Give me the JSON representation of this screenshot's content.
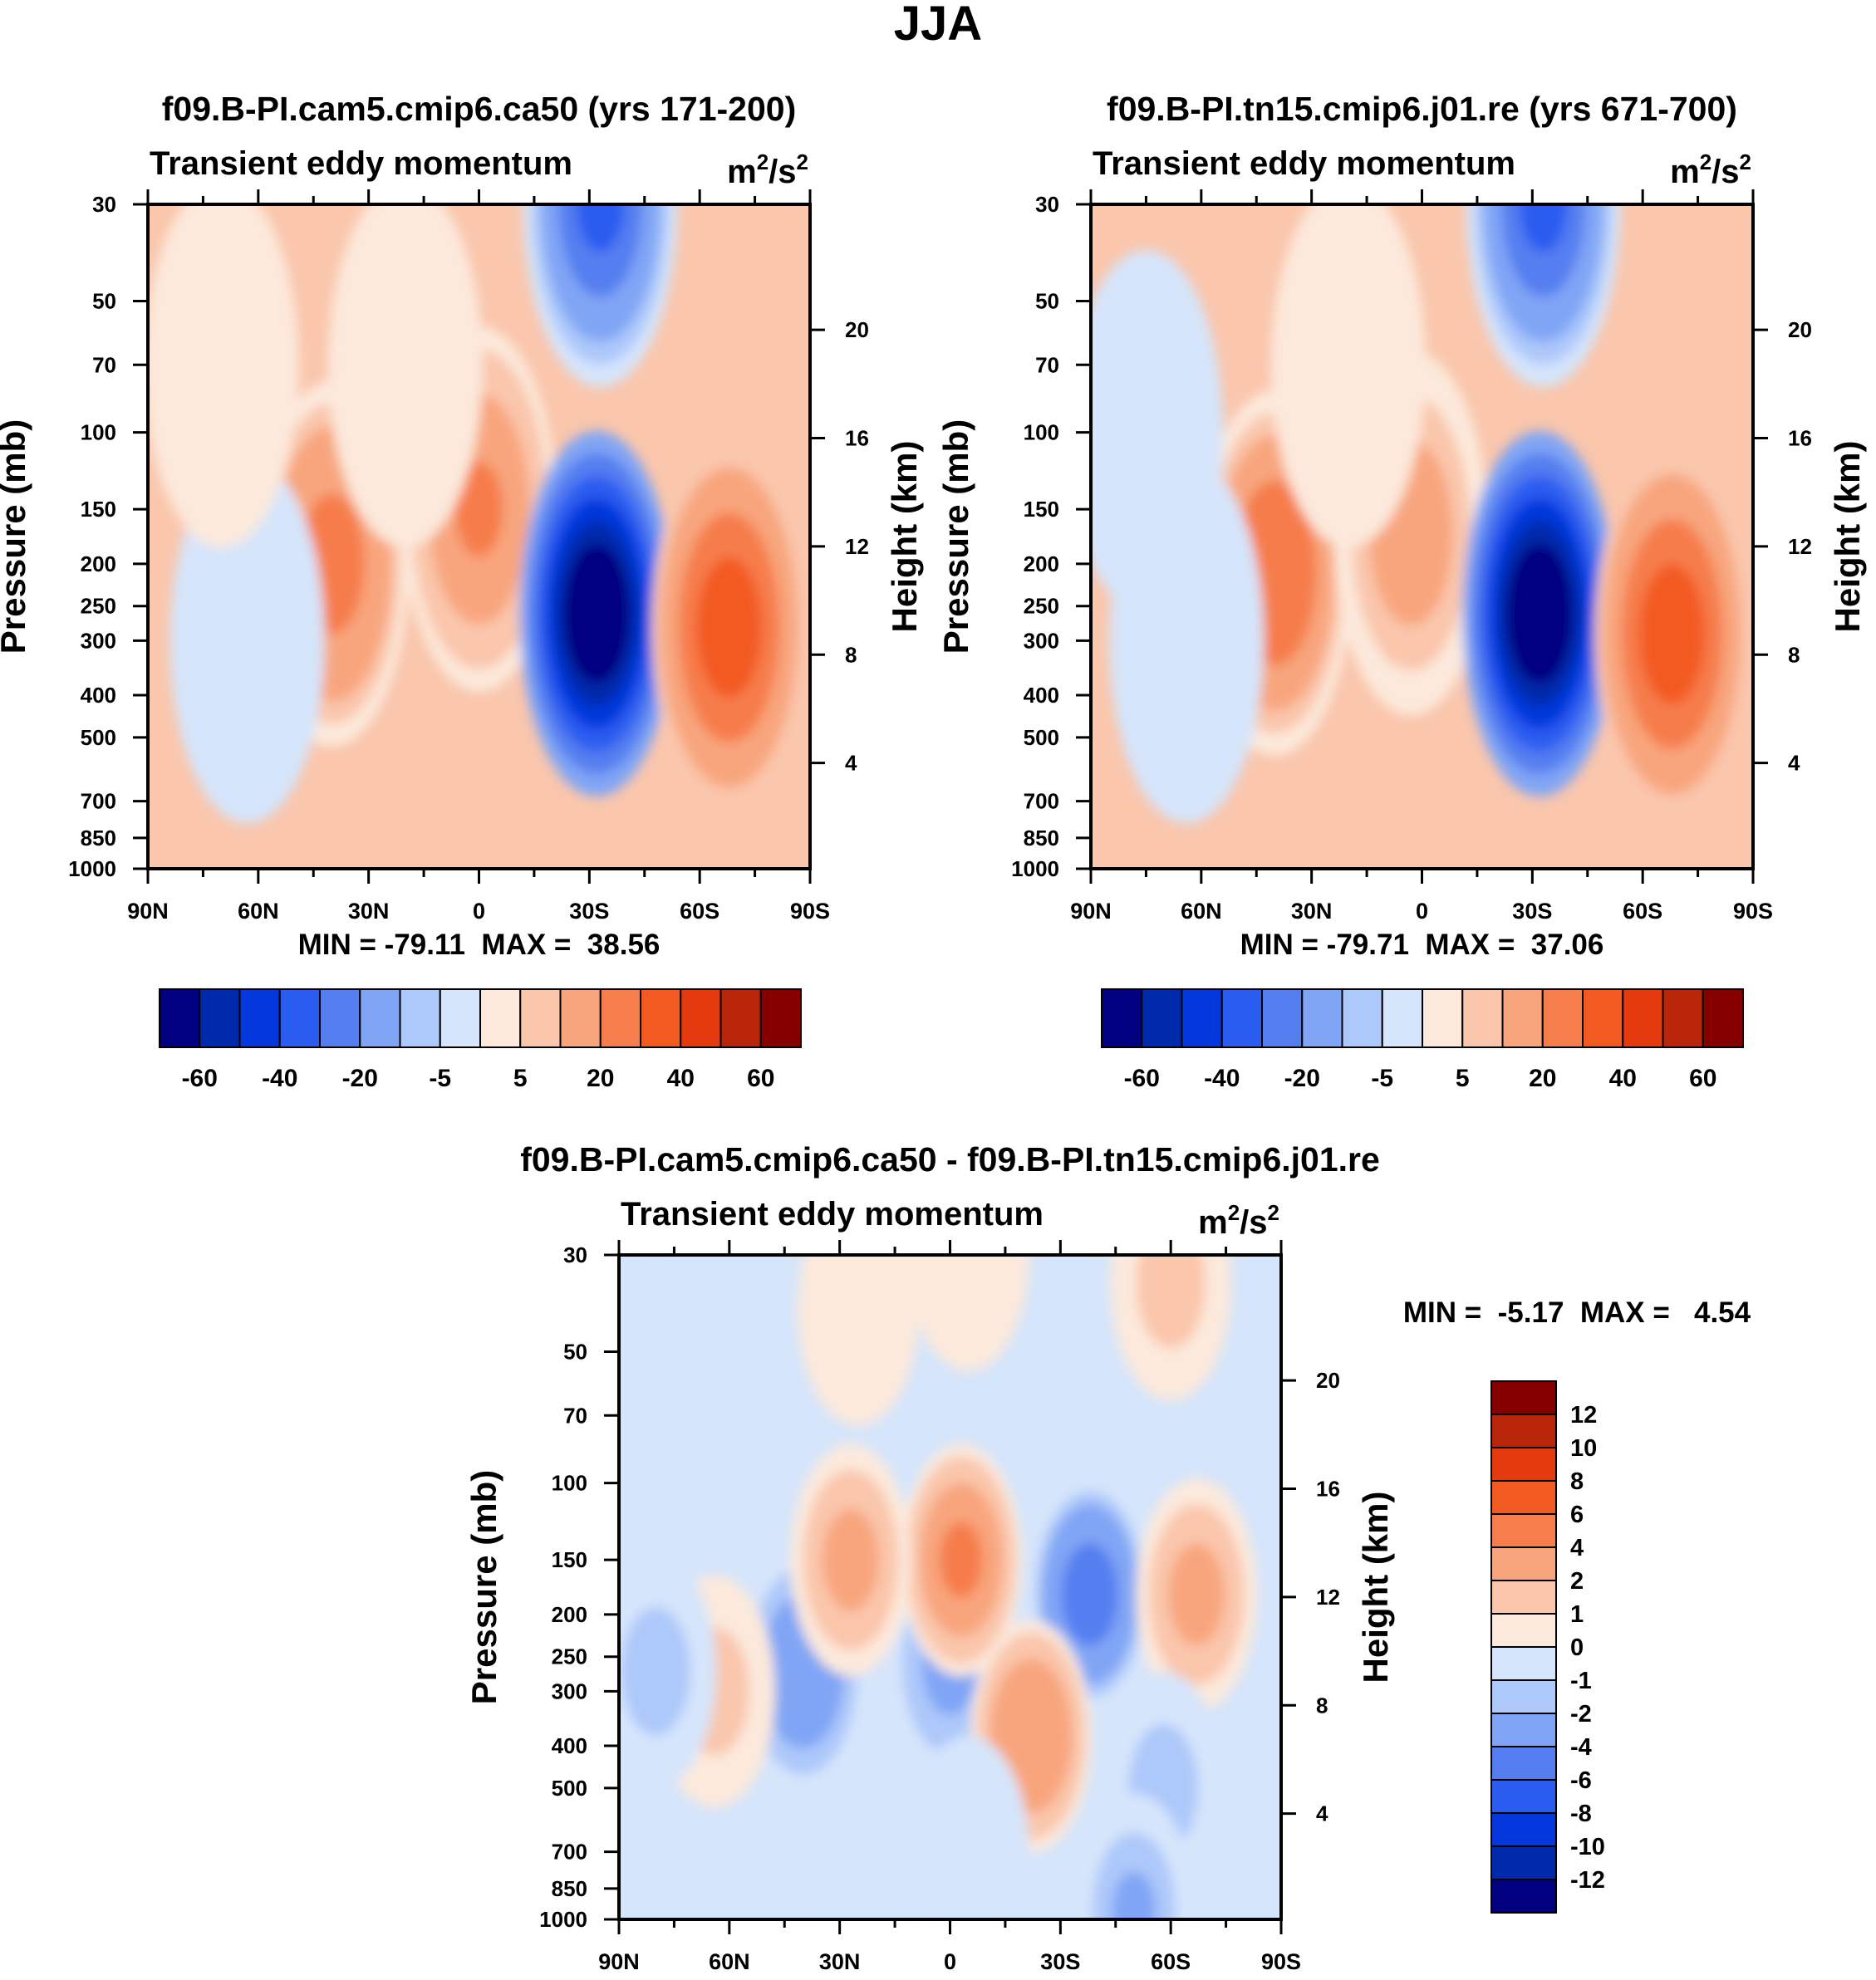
{
  "figure": {
    "title": "JJA"
  },
  "chart_data": [
    {
      "type": "heatmap",
      "title": "f09.B-PI.cam5.cmip6.ca50 (yrs 171-200)",
      "subtitle": "Transient eddy momentum",
      "units": "m2/s2",
      "units_base": "m",
      "units_exp1": "2",
      "units_mid": "/s",
      "units_exp2": "2",
      "ylabel": "Pressure (mb)",
      "y2label": "Height (km)",
      "x_ticks": [
        "90N",
        "60N",
        "30N",
        "0",
        "30S",
        "60S",
        "90S"
      ],
      "x_values": [
        90,
        60,
        30,
        0,
        -30,
        -60,
        -90
      ],
      "y_ticks": [
        "30",
        "50",
        "70",
        "100",
        "150",
        "200",
        "250",
        "300",
        "400",
        "500",
        "700",
        "850",
        "1000"
      ],
      "y_values": [
        30,
        50,
        70,
        100,
        150,
        200,
        250,
        300,
        400,
        500,
        700,
        850,
        1000
      ],
      "y2_ticks": [
        "20",
        "16",
        "12",
        "8",
        "4"
      ],
      "y2_values": [
        20,
        16,
        12,
        8,
        4
      ],
      "stats": "MIN = -79.11  MAX =  38.56",
      "min": -79.11,
      "max": 38.56,
      "colorbar_labels": [
        "-60",
        "-40",
        "-20",
        "-5",
        "5",
        "20",
        "40",
        "60"
      ],
      "features": [
        {
          "lat": 40,
          "p": 200,
          "value": 25
        },
        {
          "lat": 0,
          "p": 150,
          "value": 22
        },
        {
          "lat": -32,
          "p": 260,
          "value": -79
        },
        {
          "lat": -68,
          "p": 280,
          "value": 38
        },
        {
          "lat": -33,
          "p": 30,
          "value": -30
        },
        {
          "lat": 63,
          "p": 300,
          "value": -3
        },
        {
          "lat": 70,
          "p": 70,
          "value": 2
        },
        {
          "lat": 20,
          "p": 70,
          "value": 2
        }
      ]
    },
    {
      "type": "heatmap",
      "title": "f09.B-PI.tn15.cmip6.j01.re (yrs 671-700)",
      "subtitle": "Transient eddy momentum",
      "units": "m2/s2",
      "units_base": "m",
      "units_exp1": "2",
      "units_mid": "/s",
      "units_exp2": "2",
      "ylabel": "Pressure (mb)",
      "y2label": "Height (km)",
      "x_ticks": [
        "90N",
        "60N",
        "30N",
        "0",
        "30S",
        "60S",
        "90S"
      ],
      "x_values": [
        90,
        60,
        30,
        0,
        -30,
        -60,
        -90
      ],
      "y_ticks": [
        "30",
        "50",
        "70",
        "100",
        "150",
        "200",
        "250",
        "300",
        "400",
        "500",
        "700",
        "850",
        "1000"
      ],
      "y_values": [
        30,
        50,
        70,
        100,
        150,
        200,
        250,
        300,
        400,
        500,
        700,
        850,
        1000
      ],
      "y2_ticks": [
        "20",
        "16",
        "12",
        "8",
        "4"
      ],
      "y2_values": [
        20,
        16,
        12,
        8,
        4
      ],
      "stats": "MIN = -79.71  MAX =  37.06",
      "min": -79.71,
      "max": 37.06,
      "colorbar_labels": [
        "-60",
        "-40",
        "-20",
        "-5",
        "5",
        "20",
        "40",
        "60"
      ],
      "features": [
        {
          "lat": 40,
          "p": 210,
          "value": 28
        },
        {
          "lat": 3,
          "p": 170,
          "value": 15
        },
        {
          "lat": -32,
          "p": 260,
          "value": -79
        },
        {
          "lat": -68,
          "p": 290,
          "value": 37
        },
        {
          "lat": -33,
          "p": 30,
          "value": -30
        },
        {
          "lat": 64,
          "p": 300,
          "value": -4
        },
        {
          "lat": 75,
          "p": 100,
          "value": -2
        },
        {
          "lat": 20,
          "p": 70,
          "value": 2
        }
      ]
    },
    {
      "type": "heatmap",
      "title": "f09.B-PI.cam5.cmip6.ca50 - f09.B-PI.tn15.cmip6.j01.re",
      "subtitle": "Transient eddy momentum",
      "units": "m2/s2",
      "units_base": "m",
      "units_exp1": "2",
      "units_mid": "/s",
      "units_exp2": "2",
      "ylabel": "Pressure (mb)",
      "y2label": "Height (km)",
      "x_ticks": [
        "90N",
        "60N",
        "30N",
        "0",
        "30S",
        "60S",
        "90S"
      ],
      "x_values": [
        90,
        60,
        30,
        0,
        -30,
        -60,
        -90
      ],
      "y_ticks": [
        "30",
        "50",
        "70",
        "100",
        "150",
        "200",
        "250",
        "300",
        "400",
        "500",
        "700",
        "850",
        "1000"
      ],
      "y_values": [
        30,
        50,
        70,
        100,
        150,
        200,
        250,
        300,
        400,
        500,
        700,
        850,
        1000
      ],
      "y2_ticks": [
        "20",
        "16",
        "12",
        "8",
        "4"
      ],
      "y2_values": [
        20,
        16,
        12,
        8,
        4
      ],
      "stats": "MIN =  -5.17  MAX =   4.54",
      "min": -5.17,
      "max": 4.54,
      "colorbar_labels": [
        "12",
        "10",
        "8",
        "6",
        "4",
        "2",
        "1",
        "0",
        "-1",
        "-2",
        "-4",
        "-6",
        "-8",
        "-10",
        "-12"
      ],
      "features": [
        {
          "lat": 40,
          "p": 270,
          "value": -3.5
        },
        {
          "lat": 0,
          "p": 260,
          "value": -2.5
        },
        {
          "lat": -3,
          "p": 150,
          "value": 4.5
        },
        {
          "lat": 27,
          "p": 150,
          "value": 2.5
        },
        {
          "lat": -38,
          "p": 180,
          "value": -5.2
        },
        {
          "lat": -22,
          "p": 380,
          "value": 3.5
        },
        {
          "lat": -67,
          "p": 180,
          "value": 2.5
        },
        {
          "lat": -60,
          "p": 35,
          "value": 1.5
        },
        {
          "lat": -58,
          "p": 500,
          "value": -1.5
        },
        {
          "lat": -50,
          "p": 950,
          "value": -2
        },
        {
          "lat": 64,
          "p": 300,
          "value": 1.5
        },
        {
          "lat": 80,
          "p": 270,
          "value": -1.5
        },
        {
          "lat": 25,
          "p": 40,
          "value": 0.5
        },
        {
          "lat": -5,
          "p": 30,
          "value": 0.5
        },
        {
          "lat": -5,
          "p": 700,
          "value": -0.7
        },
        {
          "lat": 25,
          "p": 900,
          "value": -0.5
        },
        {
          "lat": 80,
          "p": 60,
          "value": -0.5
        }
      ]
    }
  ],
  "colorbars": {
    "top": {
      "colors": [
        "#000080",
        "#002aac",
        "#0538dc",
        "#2b5cf0",
        "#547ef0",
        "#80a5f5",
        "#adc8fa",
        "#d5e5fb",
        "#fce9dc",
        "#fac6ac",
        "#f8a57d",
        "#f67d4c",
        "#f35a22",
        "#e43a0d",
        "#b92508",
        "#870000"
      ]
    },
    "diff": {
      "colors": [
        "#870000",
        "#b92508",
        "#e43a0d",
        "#f35a22",
        "#f67d4c",
        "#f8a57d",
        "#fac6ac",
        "#fce9dc",
        "#d5e5fb",
        "#adc8fa",
        "#80a5f5",
        "#547ef0",
        "#2b5cf0",
        "#0538dc",
        "#002aac",
        "#000080"
      ]
    }
  }
}
